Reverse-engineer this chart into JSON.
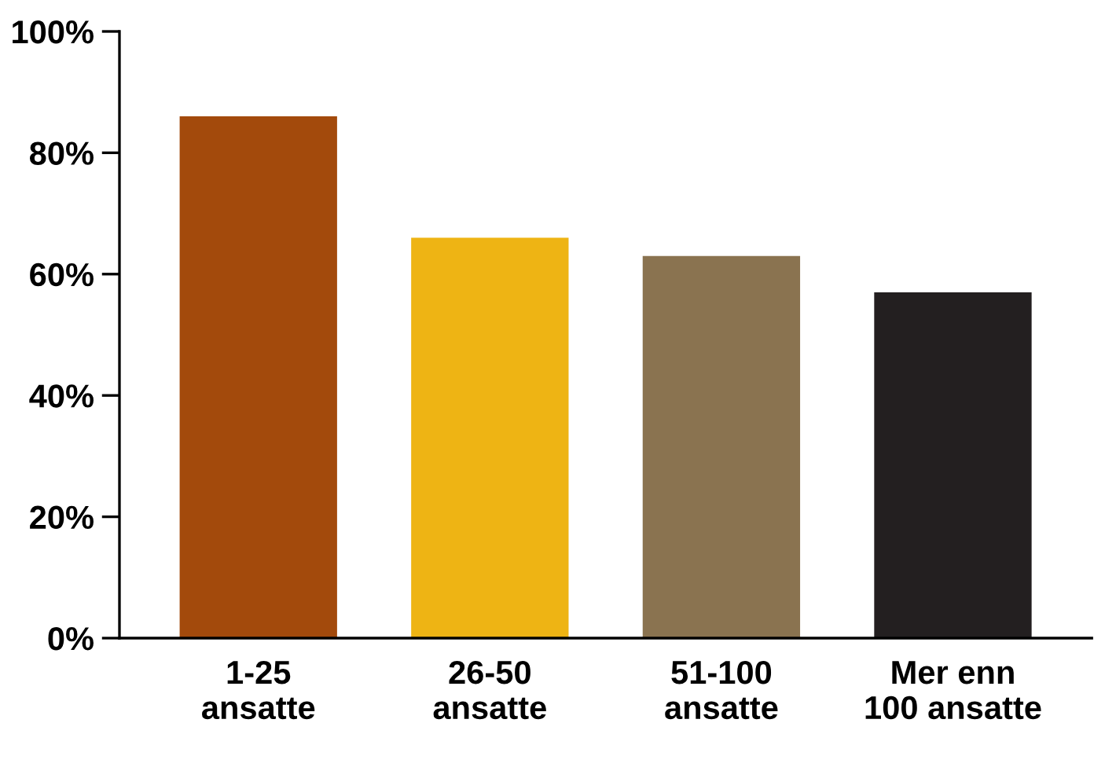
{
  "chart_data": {
    "type": "bar",
    "categories": [
      "1-25\nansatte",
      "26-50\nansatte",
      "51-100\nansatte",
      "Mer enn\n100 ansatte"
    ],
    "values": [
      86,
      66,
      63,
      57
    ],
    "colors": [
      "#a34a0c",
      "#eeb414",
      "#8a7350",
      "#231f20"
    ],
    "ylim": [
      0,
      100
    ],
    "yticks": [
      {
        "value": 0,
        "label": "0%"
      },
      {
        "value": 20,
        "label": "20%"
      },
      {
        "value": 40,
        "label": "40%"
      },
      {
        "value": 60,
        "label": "60%"
      },
      {
        "value": 80,
        "label": "80%"
      },
      {
        "value": 100,
        "label": "100%"
      }
    ],
    "grid": false,
    "legend": false
  }
}
